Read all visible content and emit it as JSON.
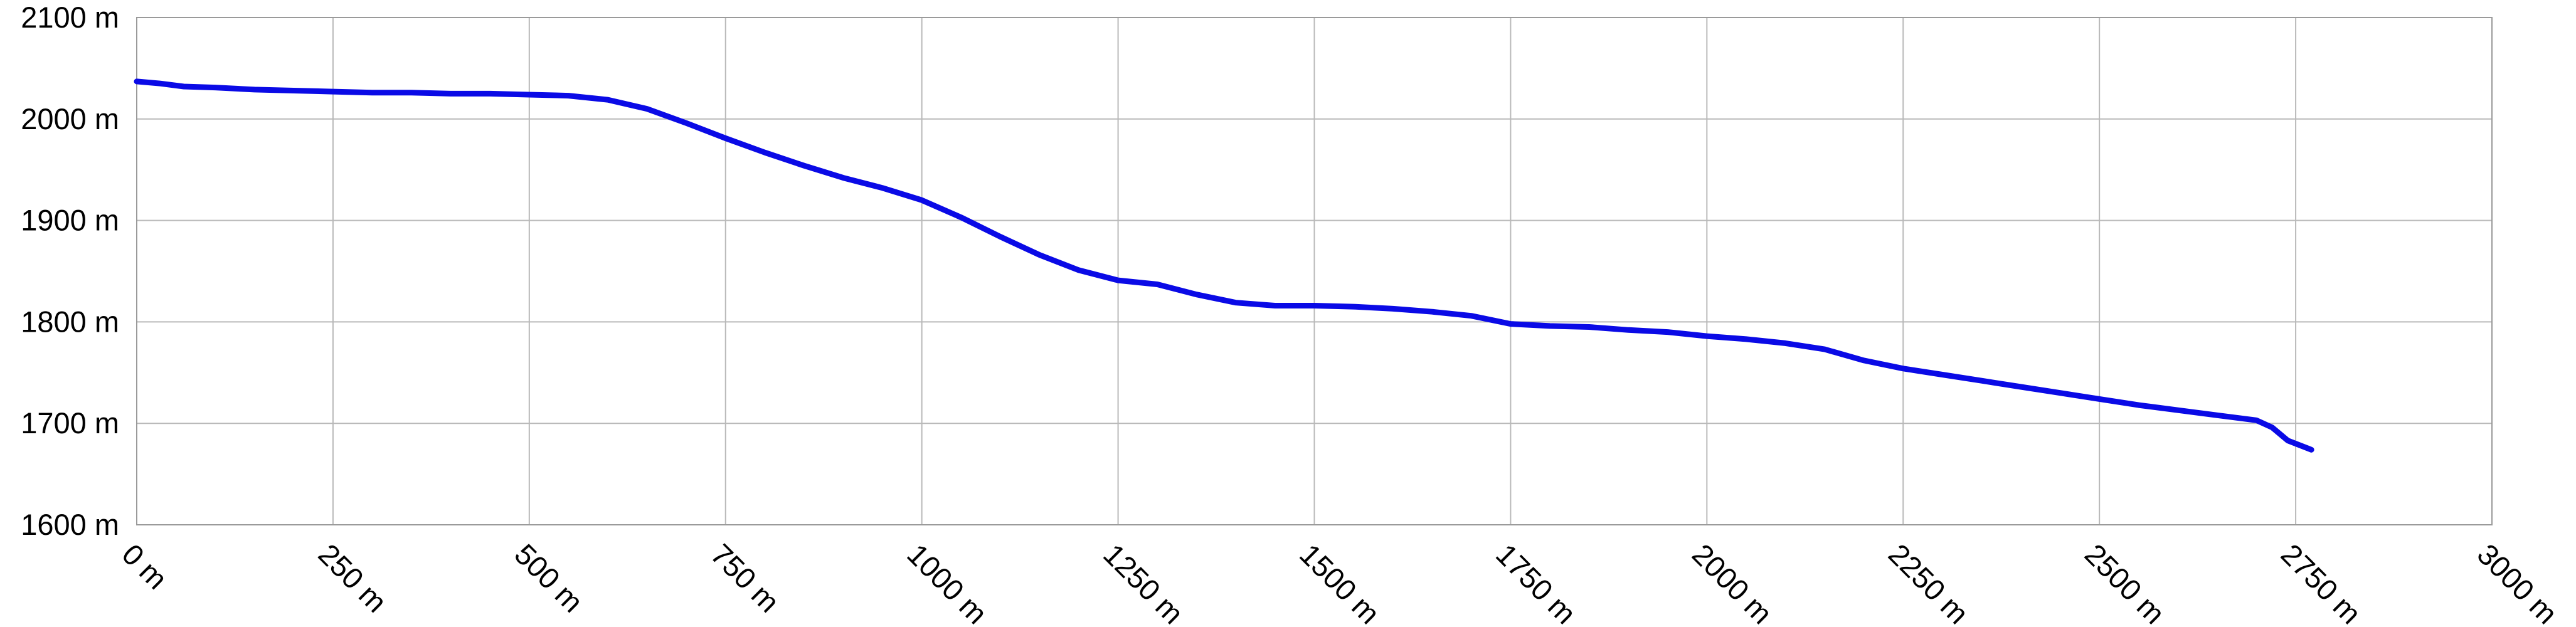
{
  "chart_data": {
    "type": "line",
    "title": "",
    "xlabel": "",
    "ylabel": "",
    "xlim": [
      0,
      3000
    ],
    "ylim": [
      1600,
      2100
    ],
    "grid": true,
    "line_color": "#0a0ae6",
    "x_ticks": [
      0,
      250,
      500,
      750,
      1000,
      1250,
      1500,
      1750,
      2000,
      2250,
      2500,
      2750,
      3000
    ],
    "y_ticks": [
      1600,
      1700,
      1800,
      1900,
      2000,
      2100
    ],
    "x_tick_labels": [
      "0 m",
      "250 m",
      "500 m",
      "750 m",
      "1000 m",
      "1250 m",
      "1500 m",
      "1750 m",
      "2000 m",
      "2250 m",
      "2500 m",
      "2750 m",
      "3000 m"
    ],
    "y_tick_labels": [
      "1600 m",
      "1700 m",
      "1800 m",
      "1900 m",
      "2000 m",
      "2100 m"
    ],
    "series": [
      {
        "x": [
          0,
          30,
          60,
          100,
          150,
          200,
          250,
          300,
          350,
          400,
          450,
          500,
          550,
          600,
          650,
          700,
          750,
          800,
          850,
          900,
          950,
          1000,
          1050,
          1100,
          1150,
          1200,
          1250,
          1300,
          1350,
          1400,
          1450,
          1500,
          1550,
          1600,
          1650,
          1700,
          1750,
          1800,
          1850,
          1900,
          1950,
          2000,
          2050,
          2100,
          2150,
          2200,
          2250,
          2300,
          2350,
          2400,
          2450,
          2500,
          2550,
          2600,
          2650,
          2700,
          2720,
          2740,
          2770
        ],
        "y": [
          2037,
          2035,
          2032,
          2031,
          2029,
          2028,
          2027,
          2026,
          2026,
          2025,
          2025,
          2024,
          2023,
          2019,
          2010,
          1996,
          1981,
          1967,
          1954,
          1942,
          1932,
          1920,
          1903,
          1884,
          1866,
          1851,
          1841,
          1837,
          1827,
          1819,
          1816,
          1816,
          1815,
          1813,
          1810,
          1806,
          1798,
          1796,
          1795,
          1792,
          1790,
          1786,
          1783,
          1779,
          1773,
          1762,
          1754,
          1748,
          1742,
          1736,
          1730,
          1724,
          1718,
          1713,
          1708,
          1703,
          1696,
          1683,
          1674
        ]
      }
    ]
  }
}
